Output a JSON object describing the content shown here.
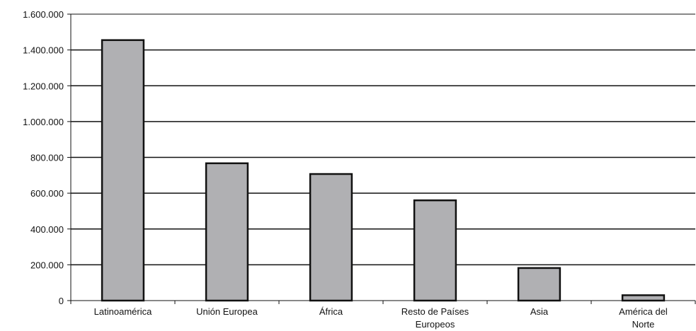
{
  "chart_data": {
    "type": "bar",
    "title": "",
    "xlabel": "",
    "ylabel": "",
    "ylim": [
      0,
      1600000
    ],
    "yticks": [
      0,
      200000,
      400000,
      600000,
      800000,
      1000000,
      1200000,
      1400000,
      1600000
    ],
    "ytick_labels": [
      "0",
      "200.000",
      "400.000",
      "600.000",
      "800.000",
      "1.000.000",
      "1.200.000",
      "1.400.000",
      "1.600.000"
    ],
    "categories": [
      "Latinoamérica",
      "Unión Europea",
      "África",
      "Resto de Países Europeos",
      "Asia",
      "América del Norte"
    ],
    "category_label_lines": [
      [
        "Latinoamérica"
      ],
      [
        "Unión Europea"
      ],
      [
        "África"
      ],
      [
        "Resto de Países",
        "Europeos"
      ],
      [
        "Asia"
      ],
      [
        "América del",
        "Norte"
      ]
    ],
    "values": [
      1455000,
      767000,
      707000,
      560000,
      182000,
      30000
    ],
    "grid": true,
    "legend": "none",
    "colors": {
      "bar_fill": "#b0b0b3",
      "bar_stroke": "#111111",
      "grid": "#111111",
      "axis": "#111111"
    }
  }
}
